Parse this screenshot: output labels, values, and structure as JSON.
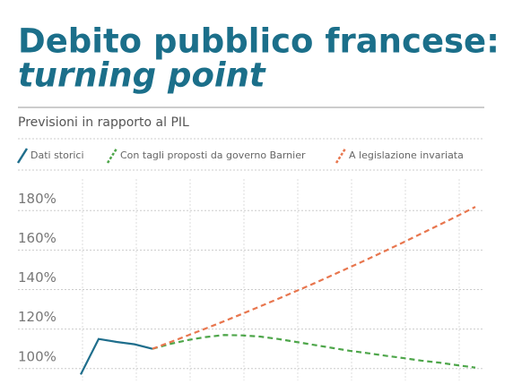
{
  "chart_data": {
    "type": "line",
    "title": "Debito pubblico francese:",
    "title_emphasis": "turning point",
    "subtitle": "Previsioni in rapporto al PIL",
    "categories": [
      null,
      null,
      null,
      null,
      null,
      null,
      null,
      null,
      null,
      null,
      null,
      null,
      null,
      null,
      null,
      null,
      null,
      null,
      null,
      null,
      null,
      null,
      null
    ],
    "series": [
      {
        "name": "Dati storici",
        "color": "#1f6e8c",
        "dash": "solid",
        "values": [
          97,
          115,
          113.5,
          112.3,
          110,
          null,
          null,
          null,
          null,
          null,
          null,
          null,
          null,
          null,
          null,
          null,
          null,
          null,
          null,
          null,
          null,
          null,
          null
        ]
      },
      {
        "name": "Con tagli proposti da governo Barnier",
        "color": "#4ea64a",
        "dash": "dashed",
        "values": [
          null,
          null,
          null,
          null,
          110,
          112.5,
          114.5,
          116,
          117,
          116.8,
          116.2,
          115,
          113.5,
          112,
          110.5,
          109,
          107.8,
          106.5,
          105.3,
          104,
          103,
          101.7,
          100.5
        ]
      },
      {
        "name": "A legislazione invariata",
        "color": "#e8764e",
        "dash": "dashed",
        "values": [
          null,
          null,
          null,
          null,
          110,
          113.4,
          116.9,
          120.4,
          124,
          127.7,
          131.5,
          135.3,
          139.2,
          143.1,
          147.2,
          151.3,
          155.4,
          159.7,
          164,
          168.4,
          172.8,
          177.3,
          181.9
        ]
      }
    ],
    "ylim": [
      94,
      196
    ],
    "yticks": [
      {
        "value": 100,
        "label": "100%"
      },
      {
        "value": 120,
        "label": "120%"
      },
      {
        "value": 140,
        "label": "140%"
      },
      {
        "value": 160,
        "label": "160%"
      },
      {
        "value": 180,
        "label": "180%"
      }
    ],
    "grid": true
  }
}
